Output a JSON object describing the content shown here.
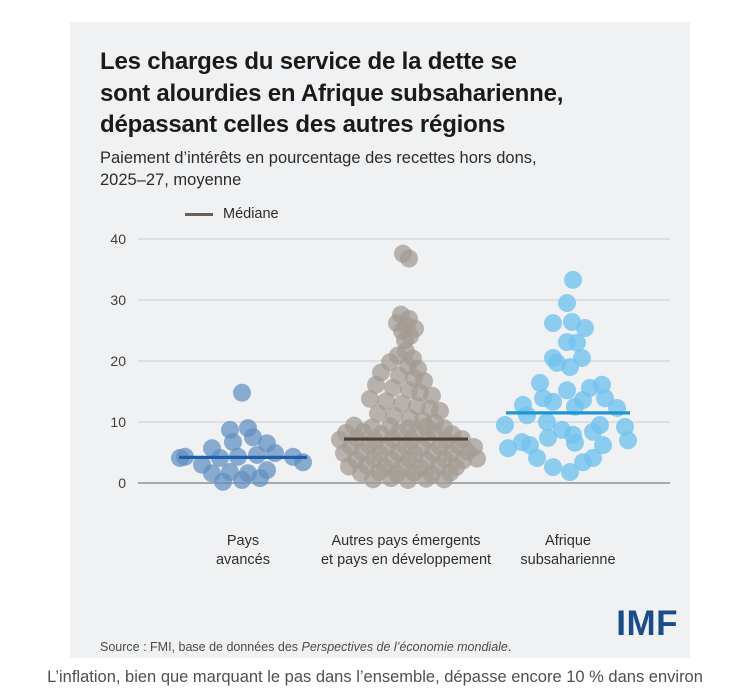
{
  "card": {
    "title_lines": [
      "Les charges du service de la dette se",
      "sont alourdies en Afrique subsaharienne,",
      "dépassant celles des autres régions"
    ],
    "subtitle_lines": [
      "Paiement d’intérêts en pourcentage des recettes hors dons,",
      "2025–27, moyenne"
    ],
    "source": {
      "prefix": "Source : FMI, base de données des ",
      "italic": "Perspectives de l’économie mondiale",
      "suffix": "."
    },
    "logo_text": "IMF"
  },
  "caption": "L’inflation, bien que marquant le pas dans l’ensemble, dépasse encore 10 % dans environ",
  "colors": {
    "card_bg": "#f0f1f2",
    "grid": "#c9ccd0",
    "zero_line": "#8e9398",
    "imf_blue": "#1a4b8a"
  },
  "chart_data": {
    "type": "scatter",
    "variant": "beeswarm",
    "title": "Les charges du service de la dette se sont alourdies en Afrique subsaharienne, dépassant celles des autres régions",
    "subtitle": "Paiement d’intérêts en pourcentage des recettes hors dons, 2025–27, moyenne",
    "ylabel": "",
    "xlabel": "",
    "ylim": [
      0,
      40
    ],
    "yticks": [
      0,
      10,
      20,
      30,
      40
    ],
    "grid": true,
    "legend": {
      "label": "Médiane",
      "color": "#6e5f55",
      "position": "top-left"
    },
    "groups": [
      {
        "label_lines": [
          "Pays",
          "avancés"
        ],
        "median": 4.2,
        "dot_color": "#5f8fc1",
        "dot_opacity": 0.72,
        "median_color": "#1d5fad",
        "median_halfspan": 64,
        "points": [
          [
            -1,
            14.8
          ],
          [
            -13,
            8.7
          ],
          [
            5,
            9.0
          ],
          [
            -31,
            5.7
          ],
          [
            -10,
            6.7
          ],
          [
            10,
            7.5
          ],
          [
            24,
            6.5
          ],
          [
            -63,
            4.1
          ],
          [
            -58,
            4.3
          ],
          [
            -41,
            3.0
          ],
          [
            -23,
            4.1
          ],
          [
            -5,
            4.3
          ],
          [
            14,
            4.6
          ],
          [
            32,
            4.9
          ],
          [
            50,
            4.3
          ],
          [
            60,
            3.4
          ],
          [
            -31,
            1.6
          ],
          [
            -13,
            1.8
          ],
          [
            5,
            1.6
          ],
          [
            24,
            2.1
          ],
          [
            -20,
            0.2
          ],
          [
            -1,
            0.5
          ],
          [
            17,
            0.8
          ]
        ]
      },
      {
        "label_lines": [
          "Autres pays émergents",
          "et pays en développement"
        ],
        "median": 7.2,
        "dot_color": "#a29a93",
        "dot_opacity": 0.72,
        "median_color": "#4f4138",
        "median_halfspan": 62,
        "points": [
          [
            -3,
            37.6
          ],
          [
            3,
            36.8
          ],
          [
            -5,
            27.6
          ],
          [
            3,
            26.9
          ],
          [
            -9,
            26.2
          ],
          [
            1,
            25.8
          ],
          [
            9,
            25.3
          ],
          [
            -4,
            24.9
          ],
          [
            4,
            24.1
          ],
          [
            -1,
            23.4
          ],
          [
            0,
            21.6
          ],
          [
            -8,
            20.9
          ],
          [
            7,
            20.4
          ],
          [
            -16,
            19.8
          ],
          [
            2,
            19.2
          ],
          [
            12,
            18.7
          ],
          [
            -25,
            18.1
          ],
          [
            -7,
            17.6
          ],
          [
            8,
            17.2
          ],
          [
            18,
            16.7
          ],
          [
            -30,
            16.1
          ],
          [
            -13,
            15.6
          ],
          [
            3,
            15.2
          ],
          [
            14,
            14.8
          ],
          [
            26,
            14.3
          ],
          [
            -36,
            13.8
          ],
          [
            -20,
            13.4
          ],
          [
            -4,
            13.0
          ],
          [
            11,
            12.6
          ],
          [
            24,
            12.2
          ],
          [
            34,
            11.8
          ],
          [
            -28,
            11.4
          ],
          [
            -12,
            11.0
          ],
          [
            4,
            10.6
          ],
          [
            17,
            10.2
          ],
          [
            29,
            9.9
          ],
          [
            -52,
            9.4
          ],
          [
            -34,
            9.1
          ],
          [
            -16,
            9.3
          ],
          [
            2,
            9.0
          ],
          [
            20,
            9.2
          ],
          [
            38,
            9.0
          ],
          [
            -60,
            8.2
          ],
          [
            -43,
            8.4
          ],
          [
            -25,
            8.0
          ],
          [
            -7,
            8.3
          ],
          [
            10,
            8.1
          ],
          [
            28,
            8.3
          ],
          [
            46,
            8.0
          ],
          [
            -66,
            7.1
          ],
          [
            -49,
            7.3
          ],
          [
            -31,
            6.9
          ],
          [
            -13,
            7.2
          ],
          [
            5,
            7.0
          ],
          [
            22,
            7.3
          ],
          [
            40,
            7.0
          ],
          [
            56,
            7.2
          ],
          [
            -55,
            6.0
          ],
          [
            -37,
            6.2
          ],
          [
            -19,
            5.9
          ],
          [
            -1,
            6.1
          ],
          [
            16,
            5.8
          ],
          [
            34,
            6.0
          ],
          [
            52,
            6.2
          ],
          [
            68,
            5.9
          ],
          [
            -62,
            4.9
          ],
          [
            -44,
            5.1
          ],
          [
            -26,
            4.8
          ],
          [
            -8,
            5.0
          ],
          [
            9,
            4.7
          ],
          [
            27,
            5.0
          ],
          [
            45,
            4.8
          ],
          [
            62,
            5.1
          ],
          [
            -50,
            3.8
          ],
          [
            -32,
            4.0
          ],
          [
            -14,
            3.7
          ],
          [
            3,
            3.9
          ],
          [
            21,
            3.6
          ],
          [
            39,
            3.9
          ],
          [
            57,
            3.7
          ],
          [
            71,
            4.0
          ],
          [
            -57,
            2.7
          ],
          [
            -39,
            2.9
          ],
          [
            -21,
            2.6
          ],
          [
            -3,
            2.8
          ],
          [
            14,
            2.5
          ],
          [
            32,
            2.8
          ],
          [
            50,
            2.6
          ],
          [
            -45,
            1.6
          ],
          [
            -27,
            1.8
          ],
          [
            -9,
            1.5
          ],
          [
            8,
            1.7
          ],
          [
            26,
            1.4
          ],
          [
            44,
            1.7
          ],
          [
            -33,
            0.6
          ],
          [
            -15,
            0.8
          ],
          [
            2,
            0.5
          ],
          [
            20,
            0.7
          ],
          [
            38,
            0.6
          ]
        ]
      },
      {
        "label_lines": [
          "Afrique",
          "subsaharienne"
        ],
        "median": 11.5,
        "dot_color": "#6fc2ee",
        "dot_opacity": 0.78,
        "median_color": "#1e93d6",
        "median_halfspan": 62,
        "points": [
          [
            5,
            33.3
          ],
          [
            -1,
            29.5
          ],
          [
            -15,
            26.2
          ],
          [
            4,
            26.4
          ],
          [
            17,
            25.4
          ],
          [
            -1,
            23.1
          ],
          [
            9,
            23.0
          ],
          [
            -15,
            20.5
          ],
          [
            14,
            20.5
          ],
          [
            -11,
            19.7
          ],
          [
            2,
            19.0
          ],
          [
            -28,
            16.4
          ],
          [
            -1,
            15.2
          ],
          [
            22,
            15.6
          ],
          [
            34,
            16.1
          ],
          [
            -25,
            13.9
          ],
          [
            -15,
            13.3
          ],
          [
            15,
            13.6
          ],
          [
            37,
            13.9
          ],
          [
            -45,
            12.8
          ],
          [
            7,
            12.5
          ],
          [
            49,
            12.3
          ],
          [
            -63,
            9.5
          ],
          [
            -41,
            11.1
          ],
          [
            -21,
            10.0
          ],
          [
            -6,
            8.7
          ],
          [
            5,
            7.9
          ],
          [
            25,
            8.4
          ],
          [
            32,
            9.5
          ],
          [
            57,
            9.2
          ],
          [
            -46,
            6.7
          ],
          [
            -38,
            6.2
          ],
          [
            -20,
            7.4
          ],
          [
            7,
            6.6
          ],
          [
            35,
            6.2
          ],
          [
            60,
            7.0
          ],
          [
            -60,
            5.7
          ],
          [
            -31,
            4.1
          ],
          [
            -15,
            2.6
          ],
          [
            2,
            1.8
          ],
          [
            15,
            3.4
          ],
          [
            25,
            4.1
          ]
        ]
      }
    ]
  }
}
